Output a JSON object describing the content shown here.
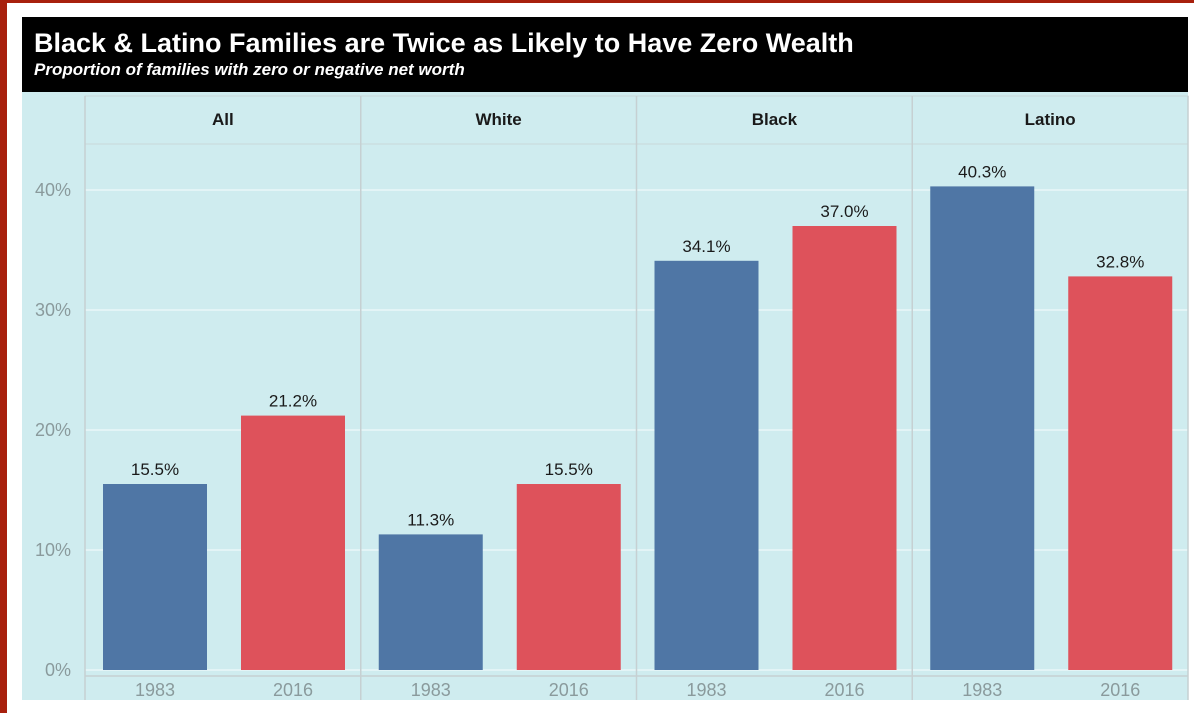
{
  "colors": {
    "series_1983": "#4f76a5",
    "series_2016": "#de525b",
    "panel_background": "#cfecef",
    "title_background": "#000000"
  },
  "chart_data": {
    "type": "bar",
    "title": "Black & Latino Families are Twice as Likely to Have Zero Wealth",
    "subtitle": "Proportion of families with zero or negative net worth",
    "xlabel": "",
    "ylabel": "",
    "ylim": [
      0,
      44
    ],
    "y_ticks": [
      "0%",
      "10%",
      "20%",
      "30%",
      "40%"
    ],
    "y_tick_values": [
      0,
      10,
      20,
      30,
      40
    ],
    "grid": true,
    "legend": "none",
    "facets": [
      "All",
      "White",
      "Black",
      "Latino"
    ],
    "categories": [
      "1983",
      "2016"
    ],
    "panels": [
      {
        "facet": "All",
        "values": [
          15.5,
          21.2
        ],
        "labels": [
          "15.5%",
          "21.2%"
        ]
      },
      {
        "facet": "White",
        "values": [
          11.3,
          15.5
        ],
        "labels": [
          "11.3%",
          "15.5%"
        ]
      },
      {
        "facet": "Black",
        "values": [
          34.1,
          37.0
        ],
        "labels": [
          "34.1%",
          "37.0%"
        ]
      },
      {
        "facet": "Latino",
        "values": [
          40.3,
          32.8
        ],
        "labels": [
          "40.3%",
          "32.8%"
        ]
      }
    ]
  }
}
